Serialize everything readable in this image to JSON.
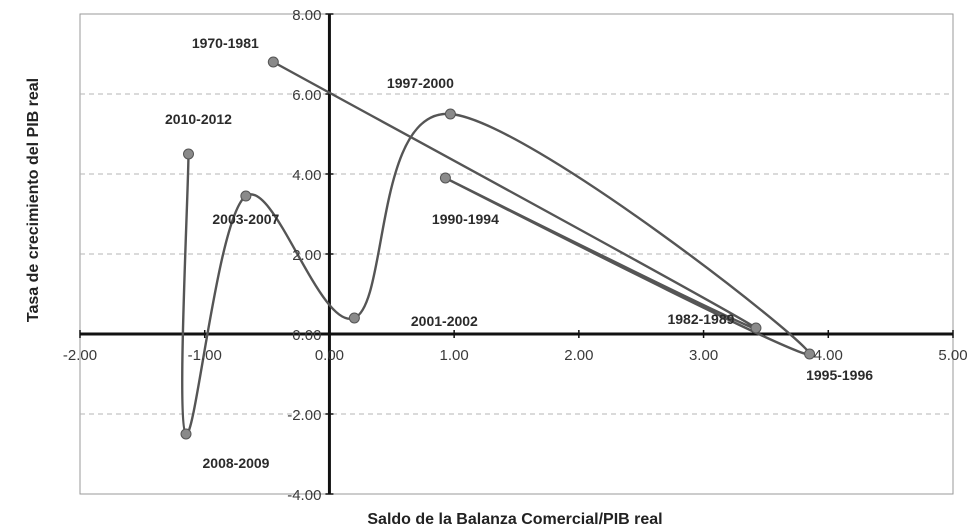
{
  "chart_data": {
    "type": "scatter",
    "title": "",
    "xlabel": "Saldo de la Balanza Comercial/PIB real",
    "ylabel": "Tasa de crecimiento del PIB real",
    "xlim": [
      -2,
      5
    ],
    "ylim": [
      -4,
      8
    ],
    "grid": "horizontal dashed",
    "x_tick_labels": [
      "-2.00",
      "-1.00",
      "0.00",
      "1.00",
      "2.00",
      "3.00",
      "4.00",
      "5.00"
    ],
    "y_tick_labels": [
      "-4.00",
      "-2.00",
      "0.00",
      "2.00",
      "4.00",
      "6.00",
      "8.00"
    ],
    "points": [
      {
        "label": "1970-1981",
        "x": -0.45,
        "y": 6.8
      },
      {
        "label": "1982-1989",
        "x": 3.42,
        "y": 0.15
      },
      {
        "label": "1990-1994",
        "x": 0.93,
        "y": 3.9
      },
      {
        "label": "1995-1996",
        "x": 3.85,
        "y": -0.5
      },
      {
        "label": "1997-2000",
        "x": 0.97,
        "y": 5.5
      },
      {
        "label": "2001-2002",
        "x": 0.2,
        "y": 0.4
      },
      {
        "label": "2003-2007",
        "x": -0.67,
        "y": 3.45
      },
      {
        "label": "2008-2009",
        "x": -1.15,
        "y": -2.5
      },
      {
        "label": "2010-2012",
        "x": -1.13,
        "y": 4.5
      }
    ],
    "line_order": [
      "1970-1981",
      "1982-1989",
      "1990-1994",
      "1995-1996",
      "1997-2000",
      "2001-2002",
      "2003-2007",
      "2008-2009",
      "2010-2012"
    ]
  }
}
